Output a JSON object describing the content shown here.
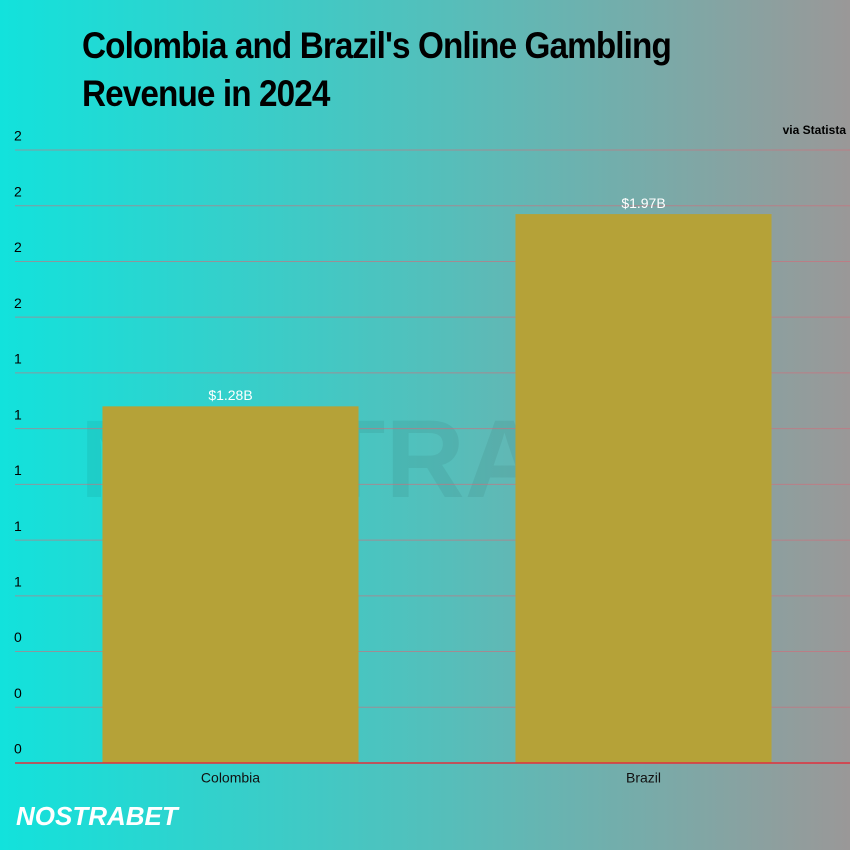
{
  "chart_data": {
    "type": "bar",
    "title": "Colombia and Brazil's Online Gambling Revenue in 2024",
    "annotation": "via Statista",
    "watermark": "NOSTRABET",
    "logo": "NOSTRABET",
    "categories": [
      "Colombia",
      "Brazil"
    ],
    "values": [
      1.28,
      1.97
    ],
    "value_labels": [
      "$1.28B",
      "$1.97B"
    ],
    "color": "#b5a238",
    "ylim": [
      0,
      2.2
    ],
    "yticks": [
      {
        "value": 0,
        "label": "0"
      },
      {
        "value": 0.2,
        "label": "0"
      },
      {
        "value": 0.4,
        "label": "0"
      },
      {
        "value": 0.6,
        "label": "1"
      },
      {
        "value": 0.8,
        "label": "1"
      },
      {
        "value": 1.0,
        "label": "1"
      },
      {
        "value": 1.2,
        "label": "1"
      },
      {
        "value": 1.4,
        "label": "1"
      },
      {
        "value": 1.6,
        "label": "2"
      },
      {
        "value": 1.8,
        "label": "2"
      },
      {
        "value": 2.0,
        "label": "2"
      },
      {
        "value": 2.2,
        "label": "2"
      }
    ],
    "grid": true
  }
}
